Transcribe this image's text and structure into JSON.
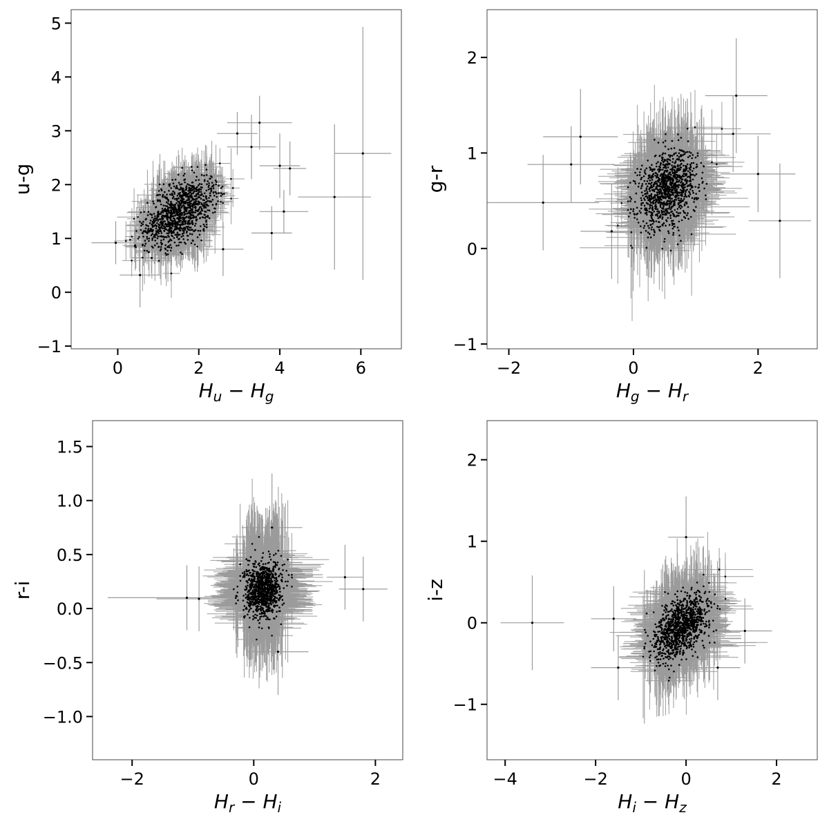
{
  "chart_data": [
    {
      "type": "scatter",
      "xlabel": {
        "main": "H",
        "sub1": "u",
        "sub2": "g"
      },
      "ylabel": "u-g",
      "xlim": [
        -1.15,
        7.0
      ],
      "ylim": [
        -1.05,
        5.25
      ],
      "xticks": [
        0,
        2,
        4,
        6
      ],
      "yticks": [
        -1,
        0,
        1,
        2,
        3,
        4,
        5
      ],
      "xtick_labels": [
        "0",
        "2",
        "4",
        "6"
      ],
      "ytick_labels": [
        "−1",
        "0",
        "1",
        "2",
        "3",
        "4",
        "5"
      ],
      "grid": false,
      "cluster": {
        "center": [
          1.55,
          1.5
        ],
        "spread": [
          0.45,
          0.32
        ],
        "corr": 0.5,
        "err_x": 0.5,
        "err_y": 0.7,
        "count": 1100
      },
      "outliers": [
        {
          "x": 6.05,
          "y": 2.58,
          "xerr": 0.7,
          "yerr": 2.35
        },
        {
          "x": 5.35,
          "y": 1.77,
          "xerr": 0.9,
          "yerr": 1.35
        },
        {
          "x": 3.5,
          "y": 3.15,
          "xerr": 0.8,
          "yerr": 0.5
        },
        {
          "x": 3.3,
          "y": 2.7,
          "xerr": 0.6,
          "yerr": 0.6
        },
        {
          "x": 2.95,
          "y": 2.95,
          "xerr": 0.5,
          "yerr": 0.4
        },
        {
          "x": 4.0,
          "y": 2.35,
          "xerr": 0.5,
          "yerr": 0.6
        },
        {
          "x": 4.25,
          "y": 2.3,
          "xerr": 0.4,
          "yerr": 0.5
        },
        {
          "x": 3.8,
          "y": 1.1,
          "xerr": 0.5,
          "yerr": 0.5
        },
        {
          "x": 4.1,
          "y": 1.5,
          "xerr": 0.6,
          "yerr": 0.4
        },
        {
          "x": -0.05,
          "y": 0.92,
          "xerr": 0.6,
          "yerr": 0.4
        },
        {
          "x": 0.55,
          "y": 0.32,
          "xerr": 0.5,
          "yerr": 0.6
        },
        {
          "x": 2.6,
          "y": 0.8,
          "xerr": 0.5,
          "yerr": 0.5
        }
      ]
    },
    {
      "type": "scatter",
      "xlabel": {
        "main": "H",
        "sub1": "g",
        "sub2": "r"
      },
      "ylabel": "g-r",
      "xlim": [
        -2.35,
        2.95
      ],
      "ylim": [
        -1.05,
        2.5
      ],
      "xticks": [
        -2,
        0,
        2
      ],
      "yticks": [
        -1,
        0,
        1,
        2
      ],
      "xtick_labels": [
        "−2",
        "0",
        "2"
      ],
      "ytick_labels": [
        "−1",
        "0",
        "1",
        "2"
      ],
      "grid": false,
      "cluster": {
        "center": [
          0.55,
          0.62
        ],
        "spread": [
          0.24,
          0.2
        ],
        "corr": 0.3,
        "err_x": 0.7,
        "err_y": 0.65,
        "count": 1100
      },
      "outliers": [
        {
          "x": 1.65,
          "y": 1.6,
          "xerr": 0.5,
          "yerr": 0.6
        },
        {
          "x": -0.85,
          "y": 1.17,
          "xerr": 0.6,
          "yerr": 0.5
        },
        {
          "x": -1.45,
          "y": 0.48,
          "xerr": 0.9,
          "yerr": 0.5
        },
        {
          "x": 2.35,
          "y": 0.29,
          "xerr": 0.5,
          "yerr": 0.6
        },
        {
          "x": 1.6,
          "y": 1.2,
          "xerr": 0.6,
          "yerr": 0.4
        },
        {
          "x": 2.0,
          "y": 0.78,
          "xerr": 0.6,
          "yerr": 0.4
        },
        {
          "x": -1.0,
          "y": 0.88,
          "xerr": 0.7,
          "yerr": 0.4
        },
        {
          "x": -0.35,
          "y": 0.18,
          "xerr": 0.5,
          "yerr": 0.5
        }
      ]
    },
    {
      "type": "scatter",
      "xlabel": {
        "main": "H",
        "sub1": "r",
        "sub2": "i"
      },
      "ylabel": "r-i",
      "xlim": [
        -2.65,
        2.45
      ],
      "ylim": [
        -1.4,
        1.74
      ],
      "xticks": [
        -2,
        0,
        2
      ],
      "yticks": [
        -1.0,
        -0.5,
        0.0,
        0.5,
        1.0,
        1.5
      ],
      "xtick_labels": [
        "−2",
        "0",
        "2"
      ],
      "ytick_labels": [
        "−1.0",
        "−0.5",
        "0.0",
        "0.5",
        "1.0",
        "1.5"
      ],
      "grid": false,
      "cluster": {
        "center": [
          0.15,
          0.18
        ],
        "spread": [
          0.15,
          0.13
        ],
        "corr": 0.1,
        "err_x": 0.75,
        "err_y": 0.65,
        "count": 1000
      },
      "outliers": [
        {
          "x": 1.8,
          "y": 0.18,
          "xerr": 0.4,
          "yerr": 0.3
        },
        {
          "x": 1.5,
          "y": 0.29,
          "xerr": 0.3,
          "yerr": 0.3
        },
        {
          "x": -1.1,
          "y": 0.1,
          "xerr": 1.3,
          "yerr": 0.3
        },
        {
          "x": 0.4,
          "y": -0.4,
          "xerr": 0.5,
          "yerr": 0.4
        },
        {
          "x": -0.9,
          "y": 0.09,
          "xerr": 0.7,
          "yerr": 0.3
        },
        {
          "x": 0.3,
          "y": 0.75,
          "xerr": 0.5,
          "yerr": 0.5
        }
      ]
    },
    {
      "type": "scatter",
      "xlabel": {
        "main": "H",
        "sub1": "i",
        "sub2": "z"
      },
      "ylabel": "i-z",
      "xlim": [
        -4.4,
        2.9
      ],
      "ylim": [
        -1.68,
        2.48
      ],
      "xticks": [
        -4,
        -2,
        0,
        2
      ],
      "yticks": [
        -1,
        0,
        1,
        2
      ],
      "xtick_labels": [
        "−4",
        "−2",
        "0",
        "2"
      ],
      "ytick_labels": [
        "−1",
        "0",
        "1",
        "2"
      ],
      "grid": false,
      "cluster": {
        "center": [
          -0.1,
          -0.05
        ],
        "spread": [
          0.3,
          0.2
        ],
        "corr": 0.5,
        "err_x": 0.9,
        "err_y": 0.7,
        "count": 1100
      },
      "outliers": [
        {
          "x": -3.4,
          "y": 0.0,
          "xerr": 0.7,
          "yerr": 0.58
        },
        {
          "x": -1.5,
          "y": -0.55,
          "xerr": 0.6,
          "yerr": 0.4
        },
        {
          "x": 0.0,
          "y": 1.05,
          "xerr": 0.4,
          "yerr": 0.5
        },
        {
          "x": 1.3,
          "y": -0.1,
          "xerr": 0.6,
          "yerr": 0.4
        },
        {
          "x": -1.6,
          "y": 0.05,
          "xerr": 0.5,
          "yerr": 0.4
        },
        {
          "x": 0.7,
          "y": -0.55,
          "xerr": 0.5,
          "yerr": 0.4
        }
      ]
    }
  ]
}
